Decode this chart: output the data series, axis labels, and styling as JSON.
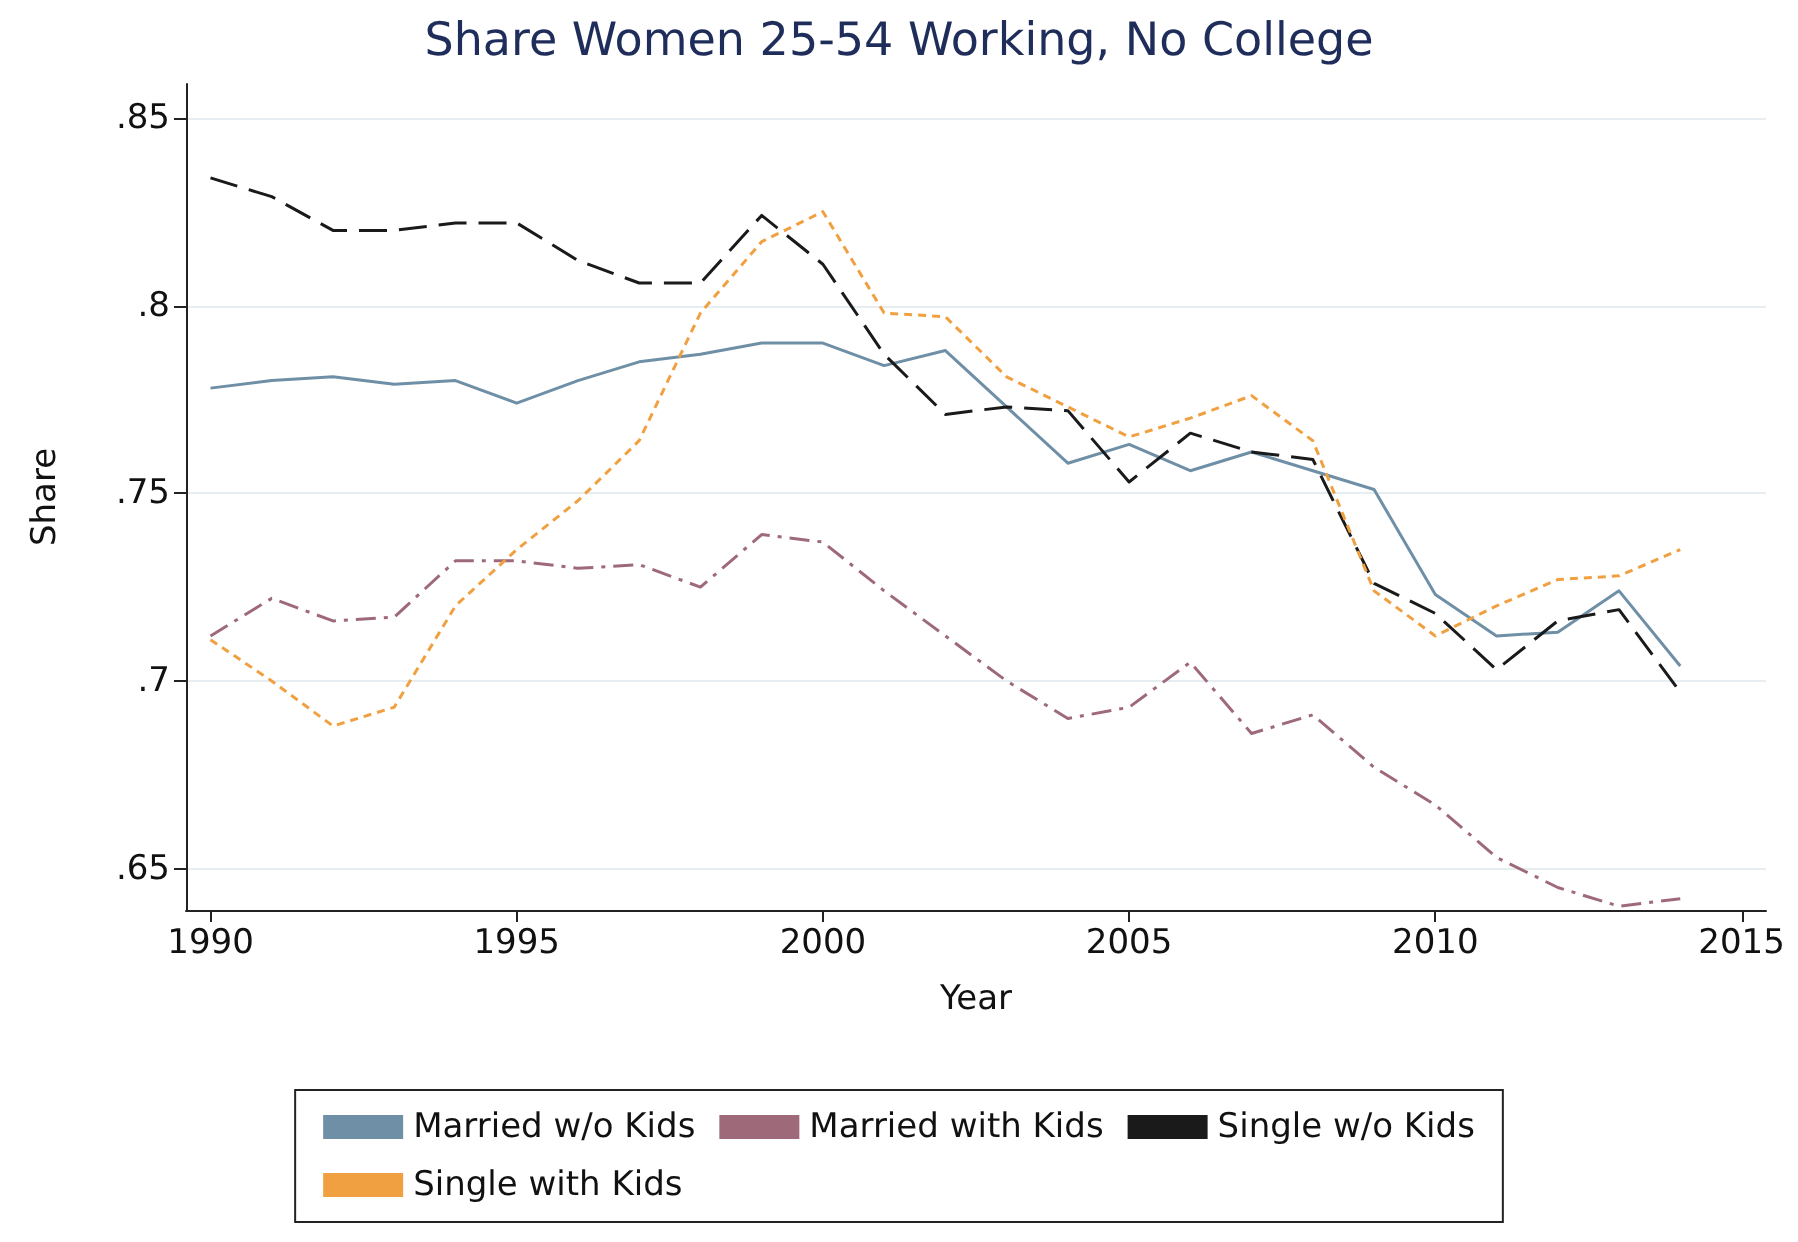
{
  "chart_data": {
    "type": "line",
    "title": "Share Women 25-54 Working, No College",
    "xlabel": "Year",
    "ylabel": "Share",
    "x": [
      1990,
      1991,
      1992,
      1993,
      1994,
      1995,
      1996,
      1997,
      1998,
      1999,
      2000,
      2001,
      2002,
      2003,
      2004,
      2005,
      2006,
      2007,
      2008,
      2009,
      2010,
      2011,
      2012,
      2013,
      2014
    ],
    "series": [
      {
        "name": "Married w/o Kids",
        "color": "#6f8fa6",
        "line_style": "solid",
        "values": [
          0.778,
          0.78,
          0.781,
          0.779,
          0.78,
          0.774,
          0.78,
          0.785,
          0.787,
          0.79,
          0.79,
          0.784,
          0.788,
          0.773,
          0.758,
          0.763,
          0.756,
          0.761,
          0.756,
          0.751,
          0.723,
          0.712,
          0.713,
          0.724,
          0.704
        ]
      },
      {
        "name": "Married with Kids",
        "color": "#9e6a7a",
        "line_style": "dashdot",
        "values": [
          0.712,
          0.722,
          0.716,
          0.717,
          0.732,
          0.732,
          0.73,
          0.731,
          0.725,
          0.739,
          0.737,
          0.724,
          0.712,
          0.7,
          0.69,
          0.693,
          0.705,
          0.686,
          0.691,
          0.677,
          0.667,
          0.653,
          0.645,
          0.64,
          0.642
        ]
      },
      {
        "name": "Single w/o Kids",
        "color": "#1a1a1a",
        "line_style": "dashed",
        "values": [
          0.834,
          0.829,
          0.82,
          0.82,
          0.822,
          0.822,
          0.812,
          0.806,
          0.806,
          0.824,
          0.811,
          0.787,
          0.771,
          0.773,
          0.772,
          0.753,
          0.766,
          0.761,
          0.759,
          0.726,
          0.718,
          0.703,
          0.716,
          0.719,
          0.697
        ]
      },
      {
        "name": "Single with Kids",
        "color": "#f0a040",
        "line_style": "dotted",
        "values": [
          0.711,
          0.7,
          0.688,
          0.693,
          0.72,
          0.735,
          0.748,
          0.764,
          0.798,
          0.817,
          0.825,
          0.798,
          0.797,
          0.781,
          0.773,
          0.765,
          0.77,
          0.776,
          0.764,
          0.724,
          0.712,
          0.72,
          0.727,
          0.728,
          0.735
        ]
      }
    ],
    "xlim": [
      1989.6,
      2015.4
    ],
    "xticks": [
      1990,
      1995,
      2000,
      2005,
      2010,
      2015
    ],
    "ylim": [
      0.639,
      0.859
    ],
    "yticks": [
      {
        "value": 0.65,
        "label": ".65"
      },
      {
        "value": 0.7,
        "label": ".7"
      },
      {
        "value": 0.75,
        "label": ".75"
      },
      {
        "value": 0.8,
        "label": ".8"
      },
      {
        "value": 0.85,
        "label": ".85"
      }
    ],
    "grid": "y",
    "legend": "bottom",
    "marker": "none"
  }
}
